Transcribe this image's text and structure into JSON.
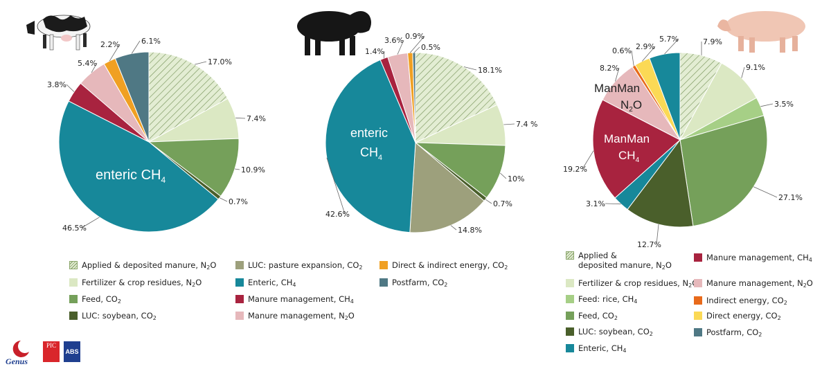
{
  "chart_data": [
    {
      "type": "pie",
      "animal": "dairy cattle",
      "slices": [
        {
          "label": "Applied & deposited manure, N2O",
          "value": 17.0,
          "text": "17.0%",
          "color": "#dfe9cf",
          "hatch": true
        },
        {
          "label": "Fertilizer & crop residues, N2O",
          "value": 7.4,
          "text": "7.4%",
          "color": "#dbe8c3"
        },
        {
          "label": "Feed, CO2",
          "value": 10.9,
          "text": "10.9%",
          "color": "#75a05a"
        },
        {
          "label": "LUC: soybean, CO2",
          "value": 0.7,
          "text": "0.7%",
          "color": "#4a5f2b"
        },
        {
          "label": "Enteric, CH4",
          "value": 46.5,
          "text": "46.5%",
          "color": "#17889a"
        },
        {
          "label": "Manure management, CH4",
          "value": 3.8,
          "text": "3.8%",
          "color": "#a8233f"
        },
        {
          "label": "Manure management, N2O",
          "value": 5.4,
          "text": "5.4%",
          "color": "#e6b8bb"
        },
        {
          "label": "Direct & indirect energy, CO2",
          "value": 2.2,
          "text": "2.2%",
          "color": "#f0a023"
        },
        {
          "label": "Postfarm, CO2",
          "value": 6.1,
          "text": "6.1%",
          "color": "#4f7884"
        }
      ],
      "inner_label": "enteric CH4"
    },
    {
      "type": "pie",
      "animal": "beef cattle",
      "slices": [
        {
          "label": "Applied & deposited manure, N2O",
          "value": 18.1,
          "text": "18.1%",
          "color": "#dfe9cf",
          "hatch": true
        },
        {
          "label": "Fertilizer & crop residues, N2O",
          "value": 7.4,
          "text": "7.4 %",
          "color": "#dbe8c3"
        },
        {
          "label": "Feed, CO2",
          "value": 10.0,
          "text": "10%",
          "color": "#75a05a"
        },
        {
          "label": "LUC: soybean, CO2",
          "value": 0.7,
          "text": "0.7%",
          "color": "#4a5f2b"
        },
        {
          "label": "LUC: pasture expansion, CO2",
          "value": 14.8,
          "text": "14.8%",
          "color": "#9da07c"
        },
        {
          "label": "Enteric, CH4",
          "value": 42.6,
          "text": "42.6%",
          "color": "#17889a"
        },
        {
          "label": "Manure management, CH4",
          "value": 1.4,
          "text": "1.4%",
          "color": "#a8233f"
        },
        {
          "label": "Manure management, N2O",
          "value": 3.6,
          "text": "3.6%",
          "color": "#e6b8bb"
        },
        {
          "label": "Direct & indirect energy, CO2",
          "value": 0.9,
          "text": "0.9%",
          "color": "#f0a023"
        },
        {
          "label": "Postfarm, CO2",
          "value": 0.5,
          "text": "0.5%",
          "color": "#4f7884"
        }
      ],
      "inner_label": "enteric CH4"
    },
    {
      "type": "pie",
      "animal": "pig",
      "slices": [
        {
          "label": "Applied & deposited manure, N2O",
          "value": 7.9,
          "text": "7.9%",
          "color": "#dfe9cf",
          "hatch": true
        },
        {
          "label": "Fertilizer & crop residues, N2O",
          "value": 9.1,
          "text": "9.1%",
          "color": "#dbe8c3"
        },
        {
          "label": "Feed: rice, CH4",
          "value": 3.5,
          "text": "3.5%",
          "color": "#a6cf86"
        },
        {
          "label": "Feed, CO2",
          "value": 27.1,
          "text": "27.1%",
          "color": "#75a05a"
        },
        {
          "label": "LUC: soybean, CO2",
          "value": 12.7,
          "text": "12.7%",
          "color": "#4a5f2b"
        },
        {
          "label": "Enteric, CH4",
          "value": 3.1,
          "text": "3.1%",
          "color": "#17889a"
        },
        {
          "label": "Manure management, CH4",
          "value": 19.2,
          "text": "19.2%",
          "color": "#a8233f"
        },
        {
          "label": "Manure management, N2O",
          "value": 8.2,
          "text": "8.2%",
          "color": "#e6b8bb"
        },
        {
          "label": "Indirect energy, CO2",
          "value": 0.6,
          "text": "0.6%",
          "color": "#e86a1b"
        },
        {
          "label": "Direct energy, CO2",
          "value": 2.9,
          "text": "2.9%",
          "color": "#fbd955"
        },
        {
          "label": "Postfarm, CO2",
          "value": 5.7,
          "text": "5.7%",
          "color": "#17889a"
        }
      ],
      "inner_labels": [
        "ManMan N2O",
        "ManMan CH4"
      ]
    }
  ],
  "legend_cattle": [
    {
      "text": "Applied & deposited manure, N",
      "sub": "2",
      "tail": "O",
      "color": "#dfe9cf",
      "hatch": true
    },
    {
      "text": "Fertilizer & crop residues, N",
      "sub": "2",
      "tail": "O",
      "color": "#dbe8c3"
    },
    {
      "text": "Feed, CO",
      "sub": "2",
      "tail": "",
      "color": "#75a05a"
    },
    {
      "text": "LUC: soybean, CO",
      "sub": "2",
      "tail": "",
      "color": "#4a5f2b"
    },
    {
      "text": "LUC: pasture expansion, CO",
      "sub": "2",
      "tail": "",
      "color": "#9da07c"
    },
    {
      "text": "Enteric, CH",
      "sub": "4",
      "tail": "",
      "color": "#17889a"
    },
    {
      "text": "Manure management, CH",
      "sub": "4",
      "tail": "",
      "color": "#a8233f"
    },
    {
      "text": "Manure management, N",
      "sub": "2",
      "tail": "O",
      "color": "#e6b8bb"
    },
    {
      "text": "Direct & indirect energy, CO",
      "sub": "2",
      "tail": "",
      "color": "#f0a023"
    },
    {
      "text": "Postfarm,  CO",
      "sub": "2",
      "tail": "",
      "color": "#4f7884"
    }
  ],
  "legend_pig": [
    {
      "text": "Applied &",
      "line2": "deposited manure, N",
      "sub": "2",
      "tail": "O",
      "color": "#dfe9cf",
      "hatch": true
    },
    {
      "text": "Fertilizer & crop residues, N",
      "sub": "2",
      "tail": "O",
      "color": "#dbe8c3"
    },
    {
      "text": "Feed: rice, CH",
      "sub": "4",
      "tail": "",
      "color": "#a6cf86"
    },
    {
      "text": "Feed, CO",
      "sub": "2",
      "tail": "",
      "color": "#75a05a"
    },
    {
      "text": "LUC: soybean, CO",
      "sub": "2",
      "tail": "",
      "color": "#4a5f2b"
    },
    {
      "text": "Enteric, CH",
      "sub": "4",
      "tail": "",
      "color": "#17889a"
    },
    {
      "text": "Manure management, CH",
      "sub": "4",
      "tail": "",
      "color": "#a8233f"
    },
    {
      "text": "Manure management, N",
      "sub": "2",
      "tail": "O",
      "color": "#e6b8bb"
    },
    {
      "text": "Indirect energy, CO",
      "sub": "2",
      "tail": "",
      "color": "#e86a1b"
    },
    {
      "text": "Direct energy, CO",
      "sub": "2",
      "tail": "",
      "color": "#fbd955"
    },
    {
      "text": "Postfarm,  CO",
      "sub": "2",
      "tail": "",
      "color": "#4f7884"
    }
  ],
  "logos": {
    "genus": "Genus",
    "pic": "PIC",
    "abs": "ABS"
  }
}
